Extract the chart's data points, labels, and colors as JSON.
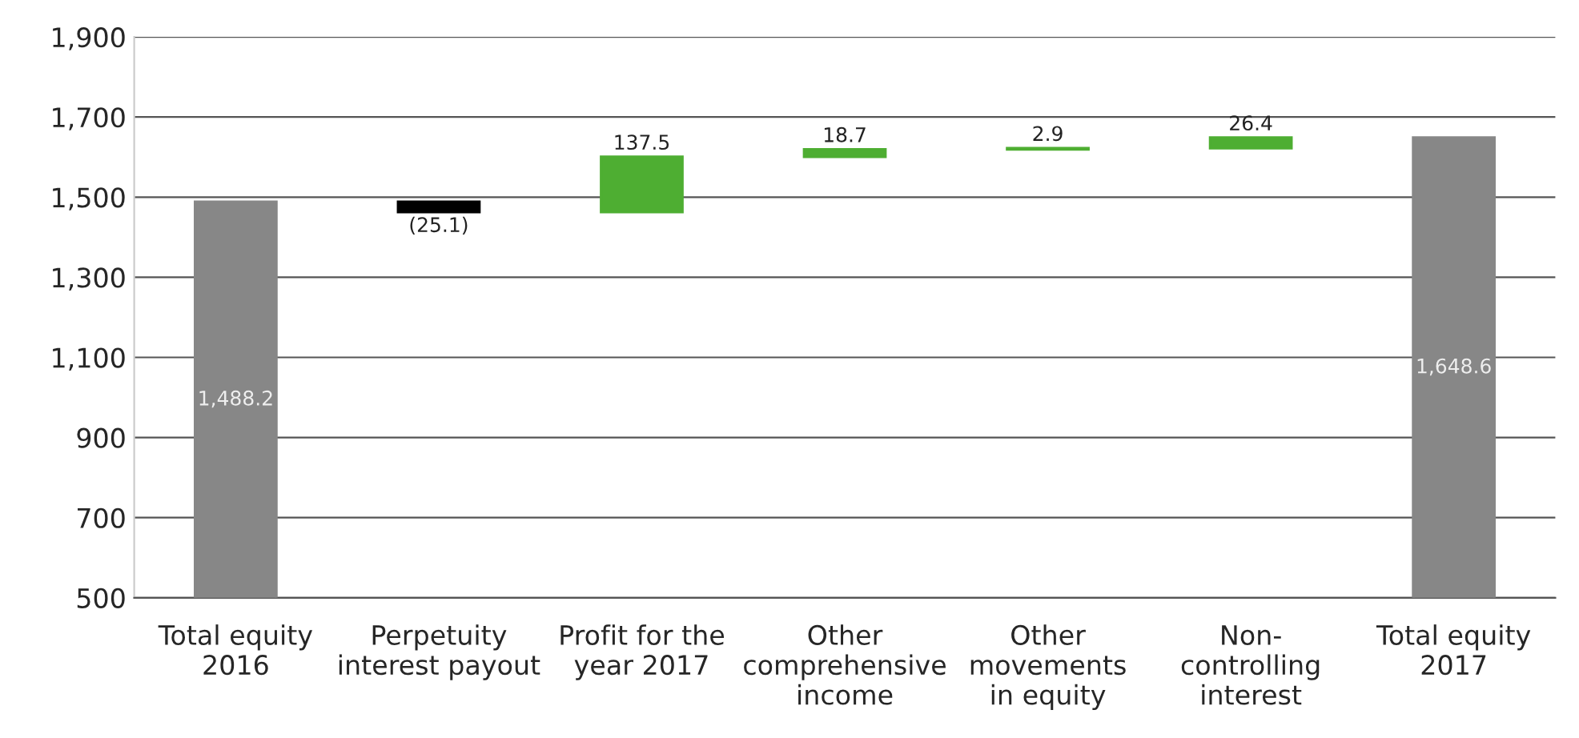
{
  "chart_data": {
    "type": "bar",
    "categories": [
      "Total equity\n2016",
      "Perpetuity\ninterest payout",
      "Profit for the\nyear 2017",
      "Other\ncomprehensive\nincome",
      "Other\nmovements\nin equity",
      "Non-\ncontrolling\ninterest",
      "Total equity\n2017"
    ],
    "values": [
      1488.2,
      -25.1,
      137.5,
      18.7,
      2.9,
      26.4,
      1648.6
    ],
    "base": [
      null,
      1488.2,
      1463.1,
      1600.6,
      1619.3,
      1622.2,
      null
    ],
    "colors": [
      "#878787",
      "#000000",
      "#4eae32",
      "#4eae32",
      "#4eae32",
      "#4eae32",
      "#878787"
    ],
    "value_labels": [
      "1,488.2",
      "(25.1)",
      "137.5",
      "18.7",
      "2.9",
      "26.4",
      "1,648.6"
    ],
    "ylim": [
      500,
      1900
    ],
    "yticks": [
      {
        "value": 500,
        "label": "500"
      },
      {
        "value": 700,
        "label": "700"
      },
      {
        "value": 900,
        "label": "900"
      },
      {
        "value": 1100,
        "label": "1,100"
      },
      {
        "value": 1300,
        "label": "1,300"
      },
      {
        "value": 1500,
        "label": "1,500"
      },
      {
        "value": 1700,
        "label": "1,700"
      },
      {
        "value": 1900,
        "label": "1,900"
      }
    ],
    "grid": "y"
  }
}
